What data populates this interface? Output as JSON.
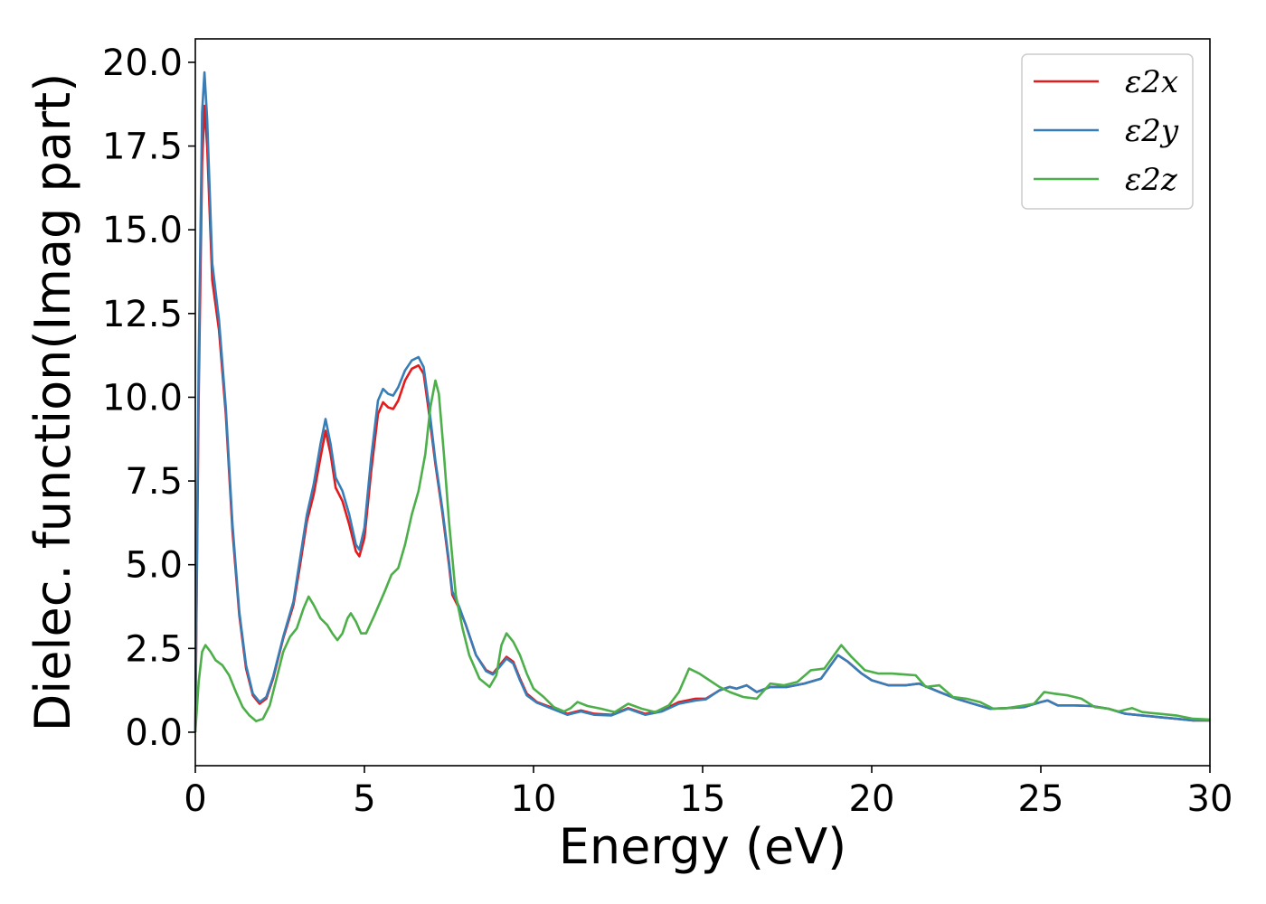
{
  "chart_data": {
    "type": "line",
    "title": "",
    "xlabel": "Energy (eV)",
    "ylabel": "Dielec. function(Imag part)",
    "xlim": [
      0,
      30
    ],
    "ylim": [
      -1,
      20.7
    ],
    "x_ticks": [
      "0",
      "5",
      "10",
      "15",
      "20",
      "25",
      "30"
    ],
    "y_ticks": [
      "0.0",
      "2.5",
      "5.0",
      "7.5",
      "10.0",
      "12.5",
      "15.0",
      "17.5",
      "20.0"
    ],
    "grid": false,
    "legend_position": "top-right",
    "series": [
      {
        "name": "ε2x",
        "color": "#e41a1c",
        "points": [
          [
            0,
            0
          ],
          [
            0.1,
            10
          ],
          [
            0.2,
            17
          ],
          [
            0.27,
            18.7
          ],
          [
            0.35,
            17.5
          ],
          [
            0.5,
            13.5
          ],
          [
            0.7,
            12
          ],
          [
            0.9,
            9.5
          ],
          [
            1.1,
            6
          ],
          [
            1.3,
            3.5
          ],
          [
            1.5,
            1.9
          ],
          [
            1.7,
            1.1
          ],
          [
            1.9,
            0.85
          ],
          [
            2.1,
            1
          ],
          [
            2.3,
            1.6
          ],
          [
            2.6,
            2.8
          ],
          [
            2.9,
            3.8
          ],
          [
            3.1,
            5
          ],
          [
            3.3,
            6.3
          ],
          [
            3.5,
            7.1
          ],
          [
            3.7,
            8.2
          ],
          [
            3.85,
            9
          ],
          [
            4.0,
            8.3
          ],
          [
            4.15,
            7.3
          ],
          [
            4.35,
            6.9
          ],
          [
            4.55,
            6.2
          ],
          [
            4.75,
            5.4
          ],
          [
            4.85,
            5.25
          ],
          [
            5.0,
            5.8
          ],
          [
            5.2,
            7.8
          ],
          [
            5.4,
            9.5
          ],
          [
            5.55,
            9.85
          ],
          [
            5.7,
            9.7
          ],
          [
            5.85,
            9.65
          ],
          [
            6.0,
            9.9
          ],
          [
            6.2,
            10.5
          ],
          [
            6.4,
            10.85
          ],
          [
            6.6,
            10.95
          ],
          [
            6.75,
            10.7
          ],
          [
            6.9,
            9.6
          ],
          [
            7.1,
            8
          ],
          [
            7.3,
            6.6
          ],
          [
            7.5,
            5
          ],
          [
            7.6,
            4.1
          ],
          [
            7.8,
            3.7
          ],
          [
            8.0,
            3.2
          ],
          [
            8.3,
            2.3
          ],
          [
            8.6,
            1.85
          ],
          [
            8.8,
            1.75
          ],
          [
            9.0,
            2
          ],
          [
            9.2,
            2.25
          ],
          [
            9.4,
            2.1
          ],
          [
            9.6,
            1.6
          ],
          [
            9.8,
            1.15
          ],
          [
            10.1,
            0.9
          ],
          [
            10.5,
            0.75
          ],
          [
            11,
            0.55
          ],
          [
            11.4,
            0.65
          ],
          [
            11.8,
            0.55
          ],
          [
            12.3,
            0.52
          ],
          [
            12.8,
            0.72
          ],
          [
            13.3,
            0.55
          ],
          [
            13.8,
            0.65
          ],
          [
            14.3,
            0.9
          ],
          [
            14.8,
            1.0
          ],
          [
            15.1,
            1.0
          ],
          [
            15.5,
            1.25
          ],
          [
            15.8,
            1.35
          ],
          [
            16.0,
            1.3
          ],
          [
            16.3,
            1.4
          ],
          [
            16.6,
            1.2
          ],
          [
            17.0,
            1.35
          ],
          [
            17.5,
            1.35
          ],
          [
            18,
            1.45
          ],
          [
            18.5,
            1.6
          ],
          [
            19.0,
            2.3
          ],
          [
            19.3,
            2.1
          ],
          [
            19.7,
            1.75
          ],
          [
            20,
            1.55
          ],
          [
            20.5,
            1.4
          ],
          [
            21,
            1.4
          ],
          [
            21.4,
            1.45
          ],
          [
            22,
            1.2
          ],
          [
            22.5,
            1.0
          ],
          [
            23,
            0.85
          ],
          [
            23.5,
            0.7
          ],
          [
            24,
            0.72
          ],
          [
            24.5,
            0.75
          ],
          [
            25,
            0.9
          ],
          [
            25.2,
            0.95
          ],
          [
            25.5,
            0.8
          ],
          [
            26,
            0.8
          ],
          [
            26.5,
            0.78
          ],
          [
            27,
            0.7
          ],
          [
            27.5,
            0.55
          ],
          [
            28,
            0.5
          ],
          [
            28.5,
            0.45
          ],
          [
            29,
            0.4
          ],
          [
            29.5,
            0.35
          ],
          [
            30,
            0.35
          ]
        ]
      },
      {
        "name": "ε2y",
        "color": "#377eb8",
        "points": [
          [
            0,
            0
          ],
          [
            0.1,
            11
          ],
          [
            0.2,
            18.5
          ],
          [
            0.27,
            19.7
          ],
          [
            0.35,
            18.3
          ],
          [
            0.5,
            14
          ],
          [
            0.7,
            12.3
          ],
          [
            0.9,
            9.7
          ],
          [
            1.1,
            6.2
          ],
          [
            1.3,
            3.6
          ],
          [
            1.5,
            2
          ],
          [
            1.7,
            1.15
          ],
          [
            1.9,
            0.9
          ],
          [
            2.1,
            1.05
          ],
          [
            2.3,
            1.65
          ],
          [
            2.6,
            2.85
          ],
          [
            2.9,
            3.9
          ],
          [
            3.1,
            5.2
          ],
          [
            3.3,
            6.5
          ],
          [
            3.5,
            7.4
          ],
          [
            3.7,
            8.6
          ],
          [
            3.85,
            9.35
          ],
          [
            4.0,
            8.6
          ],
          [
            4.15,
            7.6
          ],
          [
            4.35,
            7.2
          ],
          [
            4.55,
            6.5
          ],
          [
            4.75,
            5.6
          ],
          [
            4.85,
            5.45
          ],
          [
            5.0,
            6.1
          ],
          [
            5.2,
            8.2
          ],
          [
            5.4,
            9.9
          ],
          [
            5.55,
            10.25
          ],
          [
            5.7,
            10.1
          ],
          [
            5.85,
            10.05
          ],
          [
            6.0,
            10.3
          ],
          [
            6.2,
            10.8
          ],
          [
            6.4,
            11.1
          ],
          [
            6.6,
            11.2
          ],
          [
            6.75,
            10.9
          ],
          [
            6.9,
            9.8
          ],
          [
            7.1,
            8.1
          ],
          [
            7.3,
            6.7
          ],
          [
            7.5,
            5.1
          ],
          [
            7.6,
            4.2
          ],
          [
            7.8,
            3.75
          ],
          [
            8.0,
            3.2
          ],
          [
            8.3,
            2.3
          ],
          [
            8.6,
            1.82
          ],
          [
            8.8,
            1.72
          ],
          [
            9.0,
            1.95
          ],
          [
            9.2,
            2.2
          ],
          [
            9.4,
            2.05
          ],
          [
            9.6,
            1.55
          ],
          [
            9.8,
            1.1
          ],
          [
            10.1,
            0.88
          ],
          [
            10.5,
            0.72
          ],
          [
            11,
            0.52
          ],
          [
            11.4,
            0.62
          ],
          [
            11.8,
            0.52
          ],
          [
            12.3,
            0.5
          ],
          [
            12.8,
            0.7
          ],
          [
            13.3,
            0.52
          ],
          [
            13.8,
            0.62
          ],
          [
            14.3,
            0.85
          ],
          [
            14.8,
            0.95
          ],
          [
            15.1,
            0.98
          ],
          [
            15.5,
            1.25
          ],
          [
            15.8,
            1.35
          ],
          [
            16.0,
            1.3
          ],
          [
            16.3,
            1.4
          ],
          [
            16.6,
            1.2
          ],
          [
            17.0,
            1.35
          ],
          [
            17.5,
            1.35
          ],
          [
            18,
            1.45
          ],
          [
            18.5,
            1.6
          ],
          [
            19.0,
            2.3
          ],
          [
            19.3,
            2.1
          ],
          [
            19.7,
            1.75
          ],
          [
            20,
            1.55
          ],
          [
            20.5,
            1.4
          ],
          [
            21,
            1.4
          ],
          [
            21.4,
            1.45
          ],
          [
            22,
            1.2
          ],
          [
            22.5,
            1.0
          ],
          [
            23,
            0.85
          ],
          [
            23.5,
            0.7
          ],
          [
            24,
            0.72
          ],
          [
            24.5,
            0.75
          ],
          [
            25,
            0.9
          ],
          [
            25.2,
            0.95
          ],
          [
            25.5,
            0.8
          ],
          [
            26,
            0.8
          ],
          [
            26.5,
            0.78
          ],
          [
            27,
            0.7
          ],
          [
            27.5,
            0.55
          ],
          [
            28,
            0.5
          ],
          [
            28.5,
            0.45
          ],
          [
            29,
            0.4
          ],
          [
            29.5,
            0.35
          ],
          [
            30,
            0.35
          ]
        ]
      },
      {
        "name": "ε2z",
        "color": "#4daf4a",
        "points": [
          [
            0,
            0
          ],
          [
            0.1,
            1.5
          ],
          [
            0.2,
            2.4
          ],
          [
            0.3,
            2.6
          ],
          [
            0.45,
            2.4
          ],
          [
            0.6,
            2.15
          ],
          [
            0.8,
            2
          ],
          [
            1.0,
            1.7
          ],
          [
            1.2,
            1.2
          ],
          [
            1.4,
            0.75
          ],
          [
            1.6,
            0.5
          ],
          [
            1.8,
            0.33
          ],
          [
            2.0,
            0.4
          ],
          [
            2.2,
            0.8
          ],
          [
            2.4,
            1.6
          ],
          [
            2.6,
            2.4
          ],
          [
            2.8,
            2.85
          ],
          [
            3.0,
            3.1
          ],
          [
            3.2,
            3.7
          ],
          [
            3.35,
            4.05
          ],
          [
            3.5,
            3.8
          ],
          [
            3.7,
            3.4
          ],
          [
            3.9,
            3.2
          ],
          [
            4.05,
            2.95
          ],
          [
            4.2,
            2.75
          ],
          [
            4.35,
            2.95
          ],
          [
            4.5,
            3.4
          ],
          [
            4.6,
            3.55
          ],
          [
            4.75,
            3.3
          ],
          [
            4.9,
            2.95
          ],
          [
            5.05,
            2.95
          ],
          [
            5.3,
            3.5
          ],
          [
            5.6,
            4.2
          ],
          [
            5.8,
            4.7
          ],
          [
            6.0,
            4.9
          ],
          [
            6.2,
            5.6
          ],
          [
            6.4,
            6.5
          ],
          [
            6.6,
            7.2
          ],
          [
            6.8,
            8.3
          ],
          [
            6.95,
            9.7
          ],
          [
            7.1,
            10.5
          ],
          [
            7.2,
            10.1
          ],
          [
            7.35,
            8.3
          ],
          [
            7.5,
            6.3
          ],
          [
            7.7,
            4.1
          ],
          [
            7.9,
            3.1
          ],
          [
            8.1,
            2.3
          ],
          [
            8.4,
            1.6
          ],
          [
            8.7,
            1.35
          ],
          [
            8.9,
            1.7
          ],
          [
            9.05,
            2.6
          ],
          [
            9.2,
            2.95
          ],
          [
            9.4,
            2.7
          ],
          [
            9.6,
            2.3
          ],
          [
            9.8,
            1.75
          ],
          [
            10.0,
            1.3
          ],
          [
            10.3,
            1.05
          ],
          [
            10.6,
            0.75
          ],
          [
            10.9,
            0.62
          ],
          [
            11.1,
            0.72
          ],
          [
            11.3,
            0.9
          ],
          [
            11.6,
            0.78
          ],
          [
            12,
            0.7
          ],
          [
            12.4,
            0.6
          ],
          [
            12.8,
            0.85
          ],
          [
            13.2,
            0.7
          ],
          [
            13.6,
            0.6
          ],
          [
            14.0,
            0.8
          ],
          [
            14.3,
            1.2
          ],
          [
            14.6,
            1.9
          ],
          [
            14.9,
            1.75
          ],
          [
            15.2,
            1.55
          ],
          [
            15.5,
            1.35
          ],
          [
            15.8,
            1.2
          ],
          [
            16.2,
            1.05
          ],
          [
            16.6,
            1.0
          ],
          [
            17.0,
            1.45
          ],
          [
            17.4,
            1.4
          ],
          [
            17.8,
            1.5
          ],
          [
            18.2,
            1.85
          ],
          [
            18.6,
            1.9
          ],
          [
            19.1,
            2.6
          ],
          [
            19.4,
            2.25
          ],
          [
            19.8,
            1.85
          ],
          [
            20.2,
            1.75
          ],
          [
            20.6,
            1.75
          ],
          [
            21,
            1.72
          ],
          [
            21.3,
            1.7
          ],
          [
            21.6,
            1.35
          ],
          [
            22,
            1.4
          ],
          [
            22.4,
            1.05
          ],
          [
            22.8,
            1.0
          ],
          [
            23.2,
            0.9
          ],
          [
            23.6,
            0.7
          ],
          [
            24,
            0.72
          ],
          [
            24.4,
            0.78
          ],
          [
            24.8,
            0.85
          ],
          [
            25.1,
            1.2
          ],
          [
            25.4,
            1.15
          ],
          [
            25.8,
            1.1
          ],
          [
            26.2,
            1.0
          ],
          [
            26.6,
            0.75
          ],
          [
            27,
            0.7
          ],
          [
            27.3,
            0.62
          ],
          [
            27.7,
            0.72
          ],
          [
            28,
            0.6
          ],
          [
            28.5,
            0.55
          ],
          [
            29,
            0.5
          ],
          [
            29.5,
            0.4
          ],
          [
            30,
            0.38
          ]
        ]
      }
    ]
  }
}
